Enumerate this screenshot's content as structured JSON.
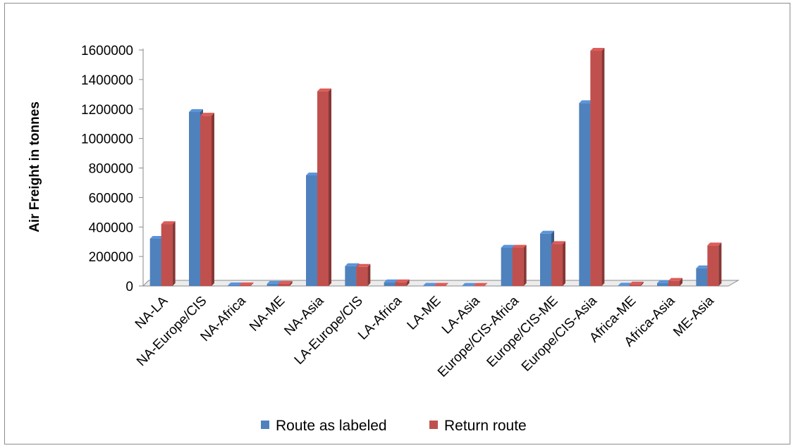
{
  "chart_data": {
    "type": "bar",
    "title": "",
    "xlabel": "",
    "ylabel": "Air Freight in tonnes",
    "ylim": [
      0,
      1600000
    ],
    "yticks": [
      0,
      200000,
      400000,
      600000,
      800000,
      1000000,
      1200000,
      1400000,
      1600000
    ],
    "grid": false,
    "legend_position": "bottom",
    "categories": [
      "NA-LA",
      "NA-Europe/CIS",
      "NA-Africa",
      "NA-ME",
      "NA-Asia",
      "LA-Europe/CIS",
      "LA-Africa",
      "LA-ME",
      "LA-Asia",
      "Europe/CIS-Africa",
      "Europe/CIS-ME",
      "Europe/CIS-Asia",
      "Africa-ME",
      "Africa-Asia",
      "ME-Asia"
    ],
    "series": [
      {
        "name": "Route as labeled",
        "color": "#4f81bd",
        "values": [
          320000,
          1180000,
          5000,
          15000,
          750000,
          135000,
          25000,
          2000,
          1000,
          260000,
          355000,
          1240000,
          3000,
          20000,
          120000
        ]
      },
      {
        "name": "Return route",
        "color": "#c0504d",
        "values": [
          420000,
          1155000,
          5000,
          15000,
          1320000,
          130000,
          25000,
          2000,
          1000,
          260000,
          285000,
          1595000,
          10000,
          35000,
          275000
        ]
      }
    ]
  }
}
